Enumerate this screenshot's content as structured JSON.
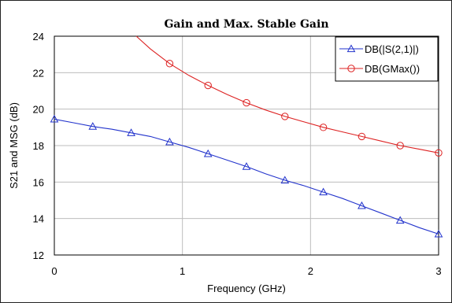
{
  "chart_data": {
    "type": "line",
    "title": "Gain and Max. Stable Gain",
    "xlabel": "Frequency (GHz)",
    "ylabel": "S21 and MSG (dB)",
    "xlim": [
      0,
      3
    ],
    "ylim": [
      12,
      24
    ],
    "xticks": [
      0,
      1,
      2,
      3
    ],
    "yticks": [
      12,
      14,
      16,
      18,
      20,
      22,
      24
    ],
    "grid": true,
    "legend_placement": "top-right",
    "series": [
      {
        "name": "DB(|S(2,1)|)",
        "color": "#2233cc",
        "marker": "triangle",
        "x": [
          0,
          0.15,
          0.3,
          0.45,
          0.6,
          0.75,
          0.9,
          1.05,
          1.2,
          1.35,
          1.5,
          1.65,
          1.8,
          1.95,
          2.1,
          2.25,
          2.4,
          2.55,
          2.7,
          2.85,
          3.0
        ],
        "y": [
          19.45,
          19.25,
          19.05,
          18.9,
          18.7,
          18.5,
          18.2,
          17.9,
          17.55,
          17.2,
          16.85,
          16.45,
          16.1,
          15.8,
          15.45,
          15.1,
          14.7,
          14.3,
          13.9,
          13.5,
          13.15
        ]
      },
      {
        "name": "DB(GMax())",
        "color": "#dd2222",
        "marker": "circle",
        "x": [
          0.64,
          0.75,
          0.9,
          1.05,
          1.2,
          1.35,
          1.5,
          1.65,
          1.8,
          1.95,
          2.1,
          2.25,
          2.4,
          2.55,
          2.7,
          2.85,
          3.0
        ],
        "y": [
          24.0,
          23.3,
          22.5,
          21.85,
          21.3,
          20.8,
          20.35,
          19.95,
          19.6,
          19.3,
          19.0,
          18.75,
          18.5,
          18.25,
          18.0,
          17.8,
          17.6
        ]
      }
    ],
    "marker_x": {
      "DB(|S(2,1)|)": [
        0,
        0.3,
        0.6,
        0.9,
        1.2,
        1.5,
        1.8,
        2.1,
        2.4,
        2.7,
        3.0
      ],
      "DB(GMax())": [
        0.9,
        1.2,
        1.5,
        1.8,
        2.1,
        2.4,
        2.7,
        3.0
      ]
    }
  }
}
